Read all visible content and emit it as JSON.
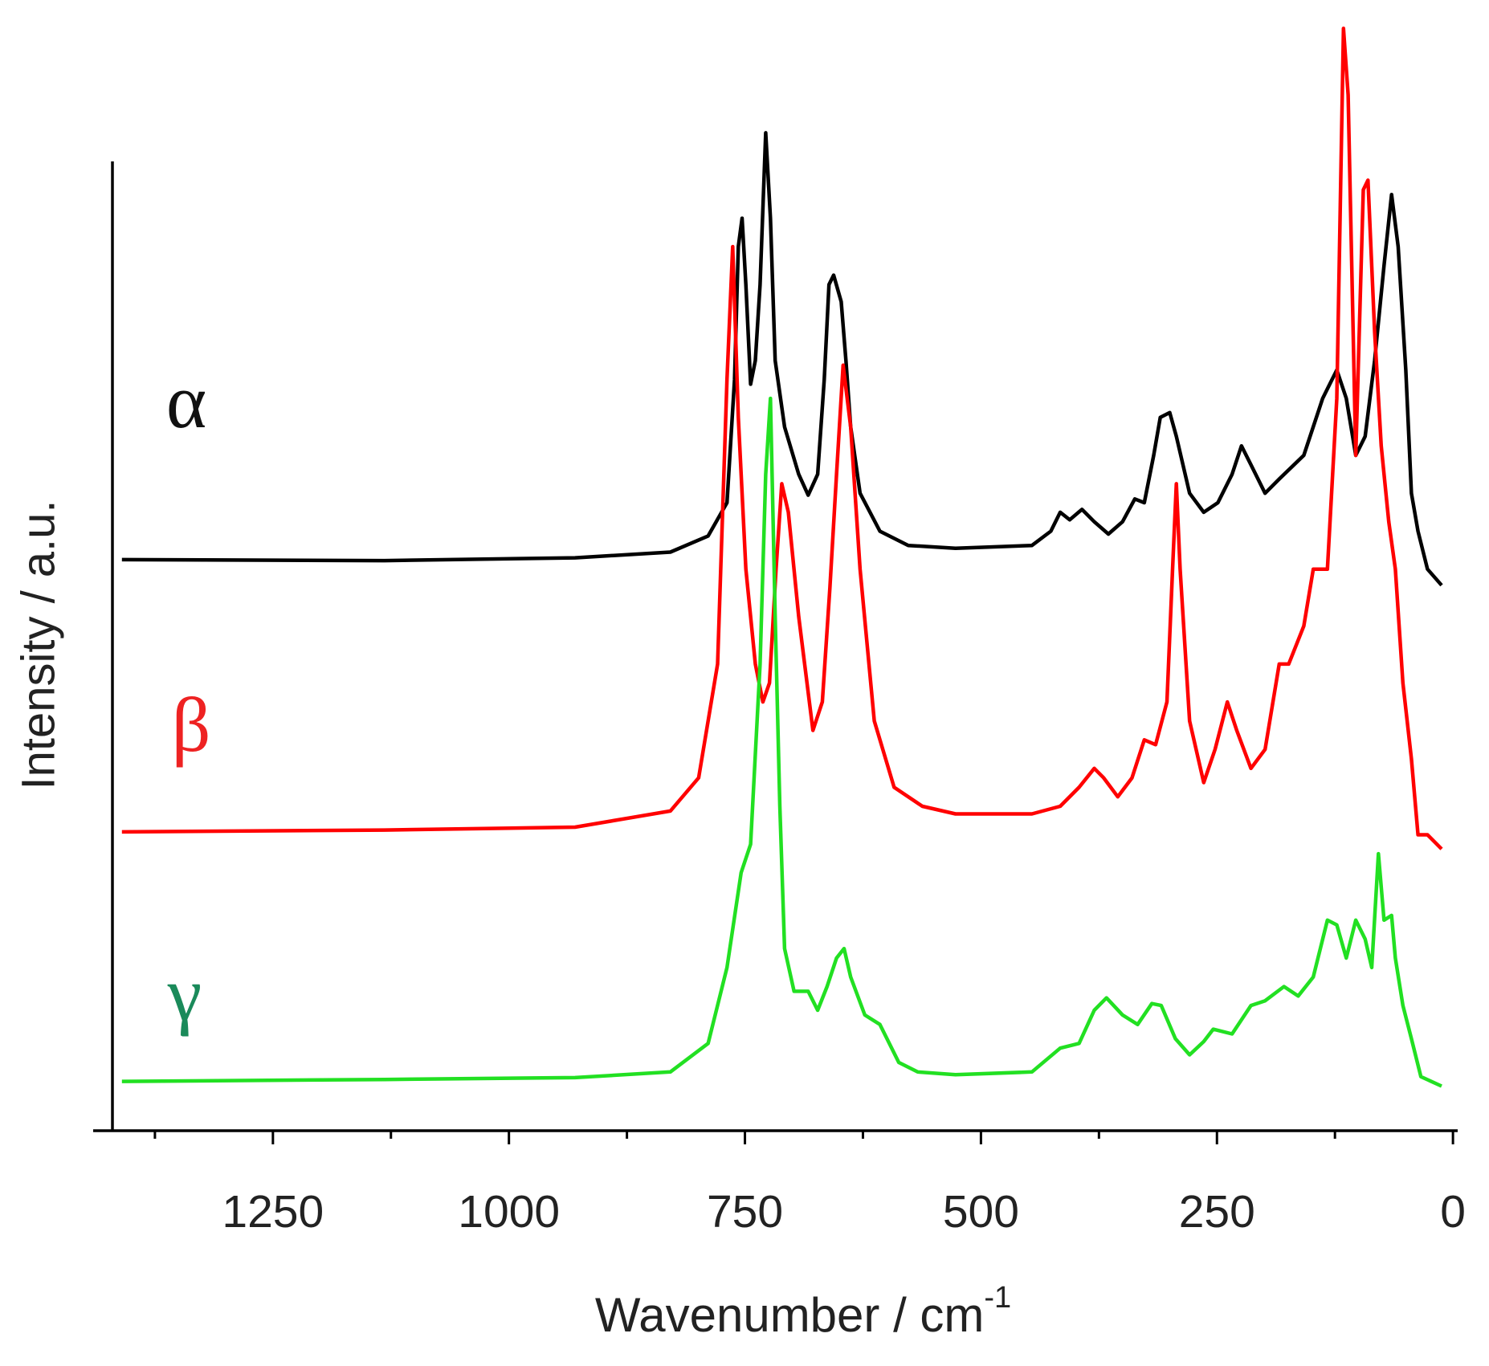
{
  "chart_data": {
    "type": "line",
    "xlabel": "Wavenumber / cm",
    "xlabel_sup": "-1",
    "ylabel": "Intensity / a.u.",
    "xlim": [
      1420,
      -5
    ],
    "xticks": [
      1250,
      1000,
      750,
      500,
      250,
      0
    ],
    "xminorticks": [
      1375,
      1125,
      875,
      625,
      375,
      125
    ],
    "ylim": [
      0,
      1170
    ],
    "series": [
      {
        "name": "α",
        "color": "#000000",
        "label_color": "#111111",
        "x": [
          1410,
          1132,
          930,
          829,
          789,
          769,
          761,
          757,
          753,
          749,
          744,
          739,
          734,
          728,
          723,
          718,
          708,
          693,
          683,
          673,
          666,
          661,
          656,
          648,
          643,
          638,
          628,
          607,
          577,
          527,
          446,
          426,
          416,
          406,
          393,
          380,
          365,
          350,
          337,
          327,
          317,
          310,
          300,
          293,
          279,
          264,
          249,
          234,
          224,
          214,
          199,
          184,
          158,
          138,
          123,
          113,
          103,
          93,
          83,
          73,
          65,
          58,
          50,
          44,
          37,
          27,
          12
        ],
        "values": [
          602,
          601,
          604,
          610,
          627,
          662,
          792,
          932,
          962,
          892,
          787,
          812,
          892,
          1052,
          962,
          812,
          742,
          692,
          670,
          692,
          792,
          892,
          902,
          874,
          812,
          742,
          672,
          632,
          617,
          614,
          617,
          632,
          652,
          644,
          655,
          642,
          629,
          642,
          666,
          662,
          712,
          752,
          757,
          732,
          672,
          652,
          662,
          692,
          722,
          702,
          672,
          687,
          712,
          772,
          802,
          772,
          712,
          732,
          812,
          912,
          987,
          932,
          802,
          672,
          632,
          592,
          575
        ]
      },
      {
        "name": "β",
        "color": "#ff0000",
        "label_color": "#ee2222",
        "x": [
          1410,
          1132,
          930,
          829,
          799,
          779,
          769,
          763,
          757,
          749,
          739,
          731,
          724,
          717,
          711,
          704,
          693,
          678,
          668,
          660,
          653,
          646,
          638,
          628,
          613,
          592,
          562,
          527,
          446,
          416,
          396,
          380,
          370,
          355,
          340,
          327,
          315,
          303,
          297,
          293,
          289,
          279,
          264,
          252,
          239,
          229,
          214,
          199,
          184,
          174,
          158,
          148,
          133,
          123,
          116,
          111,
          103,
          95,
          90,
          83,
          76,
          68,
          61,
          53,
          44,
          37,
          27,
          12
        ],
        "values": [
          315,
          317,
          320,
          337,
          372,
          492,
          792,
          932,
          752,
          592,
          492,
          452,
          472,
          592,
          682,
          652,
          542,
          422,
          452,
          572,
          692,
          807,
          742,
          592,
          432,
          362,
          342,
          334,
          334,
          342,
          362,
          382,
          372,
          352,
          372,
          412,
          407,
          452,
          592,
          682,
          592,
          432,
          367,
          402,
          452,
          422,
          382,
          402,
          492,
          492,
          532,
          592,
          592,
          772,
          1162,
          1092,
          712,
          992,
          1002,
          842,
          722,
          642,
          592,
          472,
          392,
          312,
          312,
          297
        ]
      },
      {
        "name": "γ",
        "color": "#22e022",
        "label_color": "#1a8a5a",
        "x": [
          1410,
          1132,
          930,
          829,
          789,
          769,
          754,
          744,
          734,
          728,
          723,
          718,
          713,
          708,
          698,
          683,
          673,
          663,
          653,
          645,
          638,
          623,
          607,
          587,
          567,
          527,
          446,
          416,
          396,
          380,
          367,
          350,
          334,
          319,
          309,
          294,
          279,
          264,
          254,
          234,
          214,
          199,
          179,
          164,
          148,
          133,
          123,
          113,
          103,
          93,
          86,
          79,
          73,
          65,
          61,
          53,
          44,
          34,
          12
        ],
        "values": [
          52,
          54,
          56,
          62,
          92,
          172,
          272,
          302,
          492,
          692,
          772,
          542,
          342,
          192,
          147,
          147,
          127,
          152,
          182,
          192,
          162,
          122,
          112,
          72,
          62,
          59,
          62,
          87,
          92,
          127,
          140,
          122,
          112,
          134,
          132,
          97,
          80,
          94,
          107,
          102,
          132,
          137,
          152,
          142,
          162,
          222,
          217,
          182,
          222,
          202,
          172,
          292,
          222,
          227,
          182,
          132,
          97,
          57,
          47
        ]
      }
    ]
  }
}
